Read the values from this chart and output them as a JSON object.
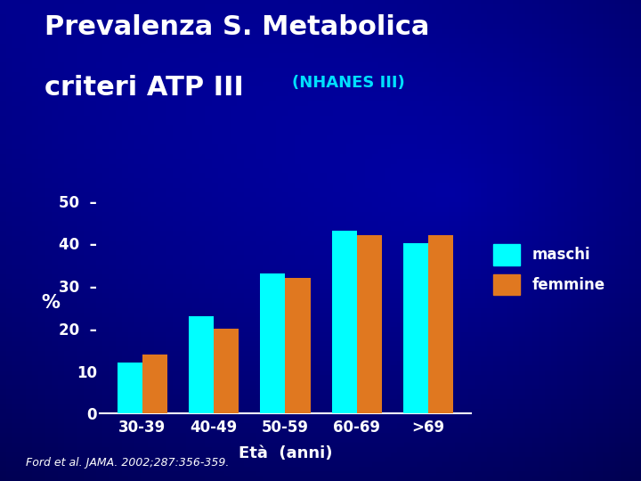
{
  "title_line1": "Prevalenza S. Metabolica",
  "title_line2": "criteri ATP III",
  "title_sub": "(NHANES III)",
  "categories": [
    "30-39",
    "40-49",
    "50-59",
    "60-69",
    ">69"
  ],
  "maschi": [
    12,
    23,
    33,
    43,
    40
  ],
  "femmine": [
    14,
    20,
    32,
    42,
    42
  ],
  "ylabel": "%",
  "xlabel": "Età  (anni)",
  "ylim": [
    0,
    52
  ],
  "yticks": [
    0,
    10,
    20,
    30,
    40,
    50
  ],
  "ytick_labels": [
    "0",
    "10",
    "20  -",
    "30  -",
    "40  -",
    "50  -"
  ],
  "bar_color_maschi": "#00FFFF",
  "bar_color_femmine": "#E07820",
  "bg_dark": "#000008",
  "bg_mid": "#000080",
  "bg_light": "#0000C0",
  "text_color": "#FFFFFF",
  "cyan_color": "#00E0FF",
  "legend_maschi": "maschi",
  "legend_femmine": "femmine",
  "footer": "Ford et al. JAMA. 2002;287:356-359.",
  "title_fontsize": 22,
  "subtitle_fontsize": 13,
  "axis_label_fontsize": 12,
  "tick_fontsize": 12,
  "legend_fontsize": 12,
  "footer_fontsize": 9
}
